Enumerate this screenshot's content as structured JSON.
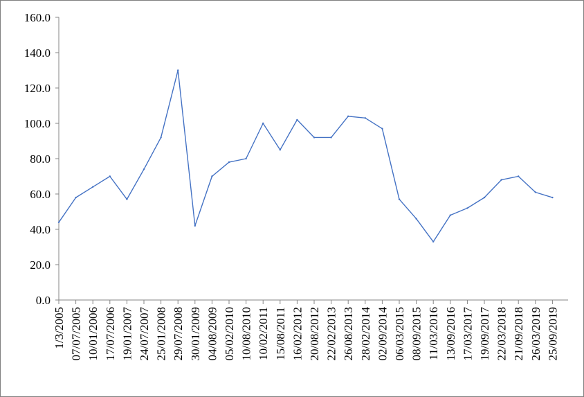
{
  "chart_data": {
    "type": "line",
    "title": "",
    "xlabel": "",
    "ylabel": "",
    "ylim": [
      0,
      160
    ],
    "y_ticks": [
      "0.0",
      "20.0",
      "40.0",
      "60.0",
      "80.0",
      "100.0",
      "120.0",
      "140.0",
      "160.0"
    ],
    "x_ticks": [
      "1/3/2005",
      "07/07/2005",
      "10/01/2006",
      "17/07/2006",
      "19/01/2007",
      "24/07/2007",
      "25/01/2008",
      "29/07/2008",
      "30/01/2009",
      "04/08/2009",
      "05/02/2010",
      "10/08/2010",
      "10/02/2011",
      "15/08/2011",
      "16/02/2012",
      "20/08/2012",
      "22/02/2013",
      "26/08/2013",
      "28/02/2014",
      "02/09/2014",
      "06/03/2015",
      "08/09/2015",
      "11/03/2016",
      "13/09/2016",
      "17/03/2017",
      "19/09/2017",
      "22/03/2018",
      "21/09/2018",
      "26/03/2019",
      "25/09/2019"
    ],
    "grid": false,
    "legend": "none",
    "series": [
      {
        "color": "#4472c4",
        "x": [
          "1/3/2005",
          "07/07/2005",
          "10/01/2006",
          "17/07/2006",
          "19/01/2007",
          "24/07/2007",
          "25/01/2008",
          "29/07/2008",
          "30/01/2009",
          "04/08/2009",
          "05/02/2010",
          "10/08/2010",
          "10/02/2011",
          "15/08/2011",
          "16/02/2012",
          "20/08/2012",
          "22/02/2013",
          "26/08/2013",
          "28/02/2014",
          "02/09/2014",
          "06/03/2015",
          "08/09/2015",
          "11/03/2016",
          "13/09/2016",
          "17/03/2017",
          "19/09/2017",
          "22/03/2018",
          "21/09/2018",
          "26/03/2019",
          "25/09/2019"
        ],
        "values": [
          44,
          58,
          64,
          70,
          57,
          74,
          92,
          130,
          42,
          70,
          78,
          80,
          100,
          85,
          102,
          92,
          92,
          104,
          103,
          97,
          57,
          46,
          33,
          48,
          52,
          58,
          68,
          70,
          61,
          58
        ]
      }
    ]
  }
}
